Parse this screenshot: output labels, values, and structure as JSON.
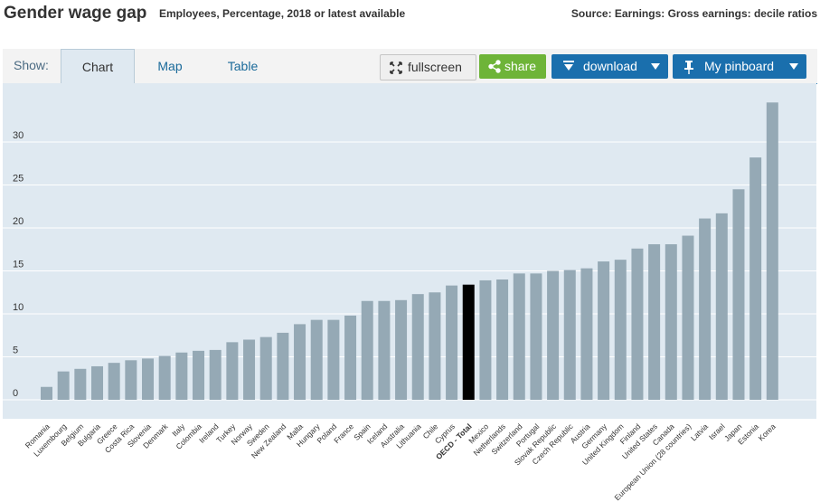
{
  "header": {
    "title": "Gender wage gap",
    "subtitle": "Employees, Percentage, 2018 or latest available",
    "source": "Source: Earnings: Gross earnings: decile ratios"
  },
  "toolbar": {
    "show_label": "Show:",
    "tabs": [
      {
        "label": "Chart",
        "active": true
      },
      {
        "label": "Map",
        "active": false
      },
      {
        "label": "Table",
        "active": false
      }
    ],
    "fullscreen_label": "fullscreen",
    "share_label": "share",
    "download_label": "download",
    "pinboard_label": "My pinboard",
    "icons": {
      "fullscreen": "expand-arrows-icon",
      "share": "share-icon",
      "download": "download-arrow-icon",
      "pinboard": "pin-icon",
      "dropdown": "triangle-down-icon"
    },
    "colors": {
      "share": "#6eb438",
      "download": "#1a6fad",
      "pinboard": "#1a6fad"
    }
  },
  "chart_data": {
    "type": "bar",
    "title": "Gender wage gap",
    "xlabel": "",
    "ylabel": "",
    "ylim": [
      -2,
      35
    ],
    "yticks": [
      0,
      5,
      10,
      15,
      20,
      25,
      30
    ],
    "grid": true,
    "bar_color": "#95a9b5",
    "highlight_color": "#000000",
    "highlight": "OECD - Total",
    "categories": [
      "Romania",
      "Luxembourg",
      "Belgium",
      "Bulgaria",
      "Greece",
      "Costa Rica",
      "Slovenia",
      "Denmark",
      "Italy",
      "Colombia",
      "Ireland",
      "Turkey",
      "Norway",
      "Sweden",
      "New Zealand",
      "Malta",
      "Hungary",
      "Poland",
      "France",
      "Spain",
      "Iceland",
      "Australia",
      "Lithuania",
      "Chile",
      "Cyprus",
      "OECD - Total",
      "Mexico",
      "Netherlands",
      "Switzerland",
      "Portugal",
      "Slovak Republic",
      "Czech Republic",
      "Austria",
      "Germany",
      "United Kingdom",
      "Finland",
      "United States",
      "Canada",
      "European Union (28 countries)",
      "Latvia",
      "Israel",
      "Japan",
      "Estonia",
      "Korea"
    ],
    "values": [
      1.5,
      3.3,
      3.6,
      3.9,
      4.3,
      4.6,
      4.8,
      5.1,
      5.5,
      5.7,
      5.8,
      6.7,
      7.0,
      7.3,
      7.8,
      8.8,
      9.3,
      9.3,
      9.8,
      11.5,
      11.5,
      11.6,
      12.3,
      12.5,
      13.3,
      13.4,
      13.9,
      14.0,
      14.7,
      14.7,
      15.0,
      15.1,
      15.3,
      16.1,
      16.3,
      17.6,
      18.1,
      18.1,
      19.1,
      21.1,
      21.7,
      24.5,
      28.2,
      34.6
    ]
  }
}
